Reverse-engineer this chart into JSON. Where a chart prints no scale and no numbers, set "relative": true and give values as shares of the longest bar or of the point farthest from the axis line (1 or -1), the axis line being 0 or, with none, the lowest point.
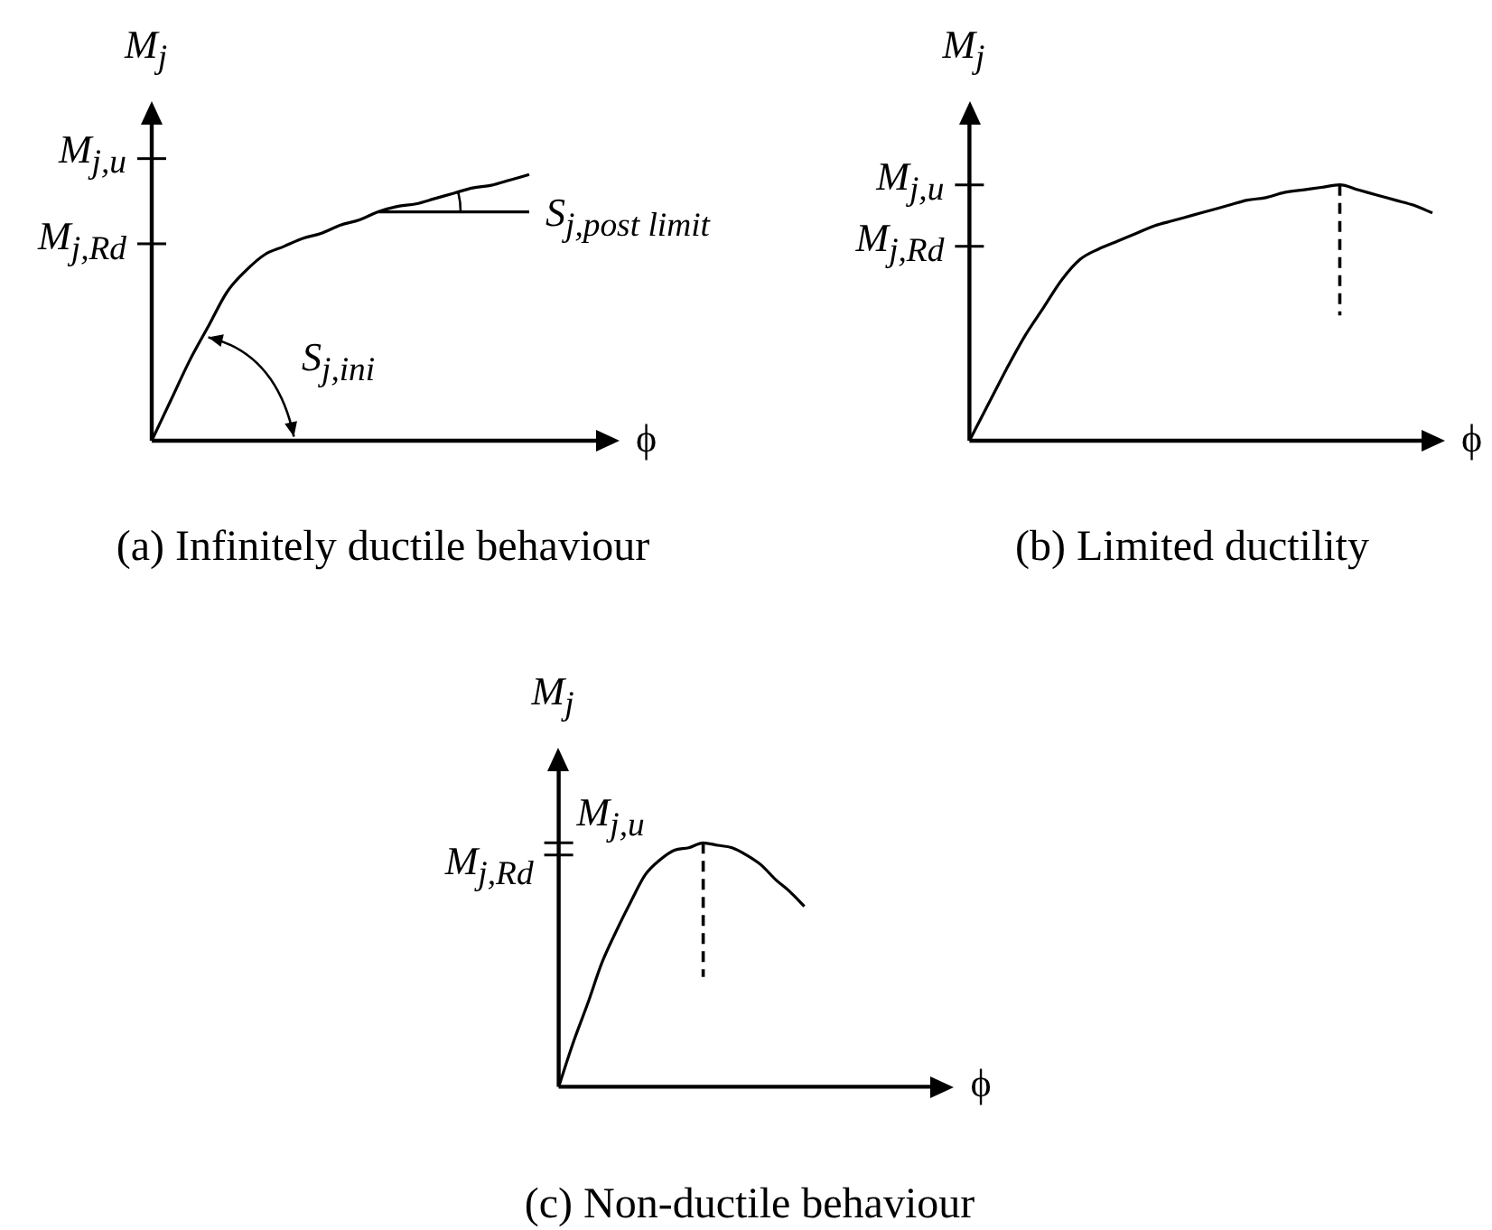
{
  "chart_data": [
    {
      "type": "line",
      "title": "(a) Infinitely ductile behaviour",
      "xlabel": "ϕ",
      "ylabel": "M$_{j}$",
      "relative": true,
      "categories": [
        null,
        null,
        null,
        null,
        null,
        null,
        null,
        null,
        null,
        null,
        null,
        null,
        null,
        null,
        null,
        null,
        null,
        null,
        null,
        null,
        null
      ],
      "series": [
        {
          "color": "#000000",
          "values": [
            0,
            0.15,
            0.3,
            0.43,
            0.56,
            0.64,
            0.7,
            0.73,
            0.76,
            0.78,
            0.81,
            0.83,
            0.86,
            0.88,
            0.89,
            0.91,
            0.93,
            0.95,
            0.96,
            0.98,
            1
          ]
        },
        {
          "color": "#000000",
          "values": [
            null,
            null,
            null,
            null,
            null,
            null,
            null,
            null,
            null,
            null,
            null,
            null,
            0.86,
            0.86,
            0.86,
            0.86,
            0.86,
            0.86,
            0.86,
            0.86,
            0.86
          ]
        }
      ],
      "ref_lines": [
        {
          "axis": "y",
          "value": 0.74,
          "label": "M$_{j,Rd}$",
          "color": "#000000"
        },
        {
          "axis": "y",
          "value": 1.06,
          "label": "M$_{j,u}$",
          "color": "#000000"
        }
      ],
      "annotations": [
        "S$_{j,ini}$",
        "S$_{j,post limit}$"
      ]
    },
    {
      "type": "line",
      "title": "(b) Limited ductility",
      "xlabel": "ϕ",
      "ylabel": "M$_{j}$",
      "relative": true,
      "categories": [
        null,
        null,
        null,
        null,
        null,
        null,
        null,
        null,
        null,
        null,
        null,
        null,
        null,
        null,
        null,
        null,
        null,
        null,
        null,
        null,
        null,
        null,
        null,
        null,
        null,
        null
      ],
      "series": [
        {
          "color": "#000000",
          "values": [
            0,
            0.14,
            0.28,
            0.41,
            0.52,
            0.63,
            0.71,
            0.75,
            0.78,
            0.81,
            0.84,
            0.86,
            0.88,
            0.9,
            0.92,
            0.94,
            0.95,
            0.97,
            0.98,
            0.99,
            1,
            0.98,
            0.96,
            0.94,
            0.92,
            0.89
          ]
        }
      ],
      "ref_lines": [
        {
          "axis": "y",
          "value": 0.76,
          "label": "M$_{j,Rd}$",
          "color": "#000000"
        },
        {
          "axis": "y",
          "value": 1,
          "label": "M$_{j,u}$",
          "color": "#000000"
        }
      ]
    },
    {
      "type": "line",
      "title": "(c) Non-ductile behaviour",
      "xlabel": "ϕ",
      "ylabel": "M$_{j}$",
      "relative": true,
      "categories": [
        null,
        null,
        null,
        null,
        null,
        null,
        null,
        null,
        null,
        null,
        null,
        null,
        null,
        null,
        null,
        null,
        null,
        null
      ],
      "series": [
        {
          "color": "#000000",
          "values": [
            0,
            0.18,
            0.34,
            0.51,
            0.64,
            0.76,
            0.87,
            0.93,
            0.97,
            0.98,
            1,
            0.99,
            0.98,
            0.95,
            0.91,
            0.85,
            0.8,
            0.74
          ]
        }
      ],
      "ref_lines": [
        {
          "axis": "y",
          "value": 0.95,
          "label": "M$_{j,Rd}$",
          "color": "#000000"
        },
        {
          "axis": "y",
          "value": 1,
          "label": "M$_{j,u}$",
          "color": "#000000"
        }
      ]
    }
  ]
}
